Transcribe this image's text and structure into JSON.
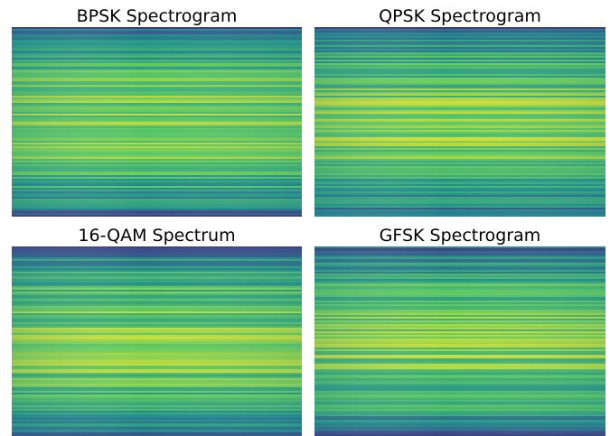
{
  "panels": [
    {
      "title": "BPSK Spectrogram"
    },
    {
      "title": "QPSK Spectrogram"
    },
    {
      "title": "16-QAM Spectrum"
    },
    {
      "title": "GFSK Spectrogram"
    }
  ]
}
